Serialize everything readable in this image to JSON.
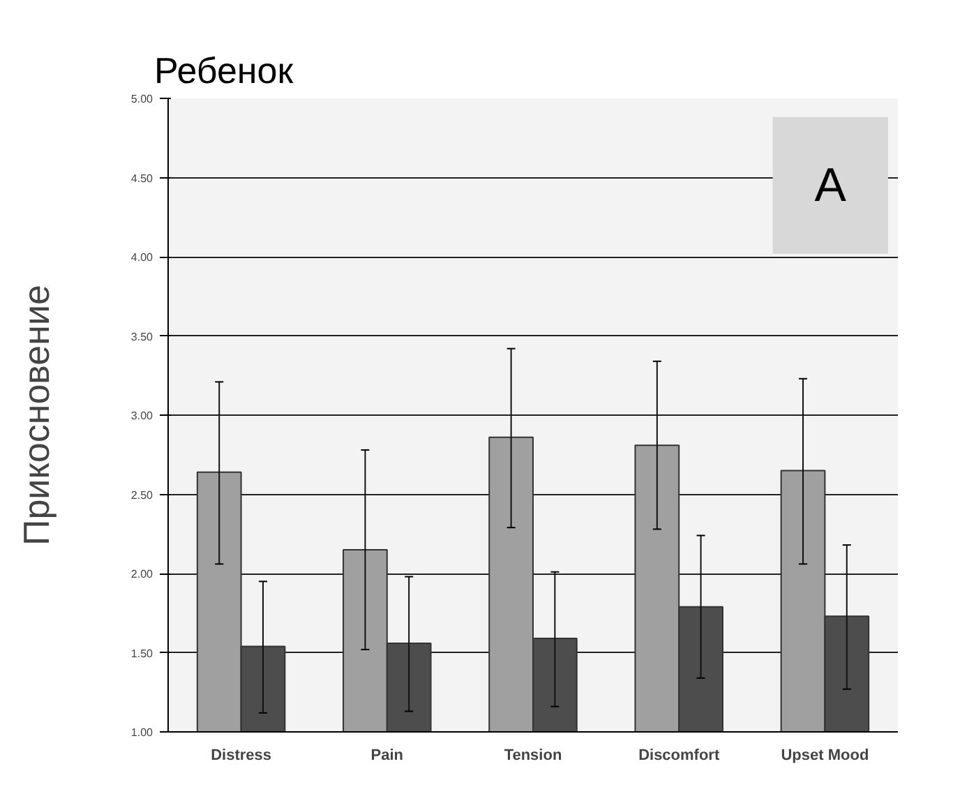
{
  "chart_data": {
    "type": "bar",
    "title": "Ребенок",
    "ylabel": "Прикосновение",
    "categories": [
      "Distress",
      "Pain",
      "Tension",
      "Discomfort",
      "Upset Mood"
    ],
    "series": [
      {
        "color": "#a0a0a0",
        "values": [
          2.64,
          2.15,
          2.86,
          2.81,
          2.65
        ],
        "errors": [
          [
            2.06,
            3.21
          ],
          [
            1.52,
            2.78
          ],
          [
            2.29,
            3.42
          ],
          [
            2.28,
            3.34
          ],
          [
            2.06,
            3.23
          ]
        ]
      },
      {
        "color": "#4d4d4d",
        "values": [
          1.54,
          1.56,
          1.59,
          1.79,
          1.73
        ],
        "errors": [
          [
            1.12,
            1.95
          ],
          [
            1.13,
            1.98
          ],
          [
            1.16,
            2.01
          ],
          [
            1.34,
            2.24
          ],
          [
            1.27,
            2.18
          ]
        ]
      }
    ],
    "ylim": [
      1,
      5
    ],
    "yticks": [
      {
        "value": 1,
        "label": "1.00"
      },
      {
        "value": 1.5,
        "label": "1.50"
      },
      {
        "value": 2,
        "label": "2.00"
      },
      {
        "value": 2.5,
        "label": "2.50"
      },
      {
        "value": 3,
        "label": "3.00"
      },
      {
        "value": 3.5,
        "label": "3.50"
      },
      {
        "value": 4,
        "label": "4.00"
      },
      {
        "value": 4.5,
        "label": "4.50"
      },
      {
        "value": 5,
        "label": "5.00"
      }
    ],
    "grid": "y",
    "annotations": [
      "A"
    ]
  }
}
